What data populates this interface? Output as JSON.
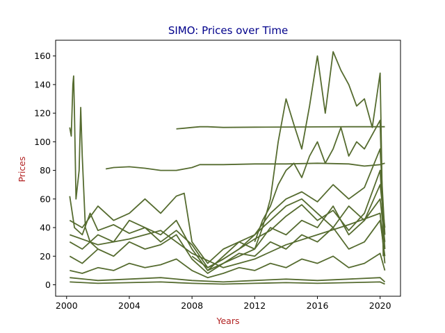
{
  "chart_data": {
    "type": "line",
    "title": "SIMO: Prices over Time",
    "xlabel": "Years",
    "ylabel": "Prices",
    "xlim": [
      1999.3,
      2021.3
    ],
    "ylim": [
      -8,
      171
    ],
    "xticks": [
      2000,
      2004,
      2008,
      2012,
      2016,
      2020
    ],
    "yticks": [
      0,
      20,
      40,
      60,
      80,
      100,
      120,
      140,
      160
    ],
    "grid": false,
    "legend": "none",
    "colors": {
      "line": "#556B2F",
      "title": "#00008B",
      "axis_label": "#B22222",
      "axis": "#000000"
    },
    "series": [
      {
        "x": [
          2007.0,
          2007.5,
          2008.0,
          2008.5,
          2009.0,
          2010.0,
          2012.0,
          2014.0,
          2016.0,
          2018.0,
          2020.0,
          2020.3
        ],
        "values": [
          109,
          109.5,
          110,
          110.5,
          110.5,
          110,
          110.2,
          110.3,
          110.4,
          110.5,
          110.5,
          110.5
        ]
      },
      {
        "x": [
          2002.5,
          2003.0,
          2004.0,
          2005.0,
          2006.0,
          2007.0,
          2008.0,
          2008.5,
          2010.0,
          2012.0,
          2014.0,
          2016.0,
          2018.0,
          2019.0,
          2020.0,
          2020.3
        ],
        "values": [
          81,
          82,
          82.5,
          81.5,
          80,
          80,
          82,
          84,
          84,
          84.5,
          84.5,
          85,
          84.5,
          83,
          84,
          85
        ]
      },
      {
        "x": [
          2000.2,
          2000.3,
          2000.4,
          2000.45,
          2000.5,
          2000.6,
          2000.8,
          2000.9,
          2001.0,
          2001.2,
          2001.5,
          2002.0
        ],
        "values": [
          110,
          104,
          140,
          146,
          120,
          60,
          80,
          124,
          90,
          40,
          30,
          25
        ]
      },
      {
        "x": [
          2009.0,
          2010.0,
          2011.0,
          2012.0,
          2012.5,
          2013.0,
          2013.5,
          2014.0,
          2014.5,
          2015.0,
          2015.5,
          2016.0,
          2016.5,
          2017.0,
          2017.5,
          2018.0,
          2018.5,
          2019.0,
          2019.5,
          2020.0,
          2020.2
        ],
        "values": [
          10,
          15,
          20,
          25,
          40,
          60,
          100,
          130,
          112,
          95,
          125,
          160,
          120,
          163,
          150,
          140,
          125,
          130,
          110,
          148,
          20
        ]
      },
      {
        "x": [
          2000.2,
          2001.0,
          2002.0,
          2003.0,
          2004.0,
          2005.0,
          2006.0,
          2007.0,
          2007.5,
          2008.0,
          2009.0,
          2010.0,
          2011.0,
          2012.0,
          2013.0,
          2014.0,
          2015.0,
          2016.0,
          2017.0,
          2018.0,
          2019.0,
          2020.0,
          2020.3
        ],
        "values": [
          45,
          40,
          55,
          45,
          50,
          60,
          50,
          62,
          64,
          30,
          15,
          25,
          30,
          35,
          45,
          55,
          60,
          50,
          40,
          55,
          45,
          70,
          40
        ]
      },
      {
        "x": [
          2000.2,
          2001.0,
          2002.0,
          2003.0,
          2004.0,
          2005.0,
          2006.0,
          2007.0,
          2008.0,
          2009.0,
          2010.0,
          2011.0,
          2012.0,
          2013.0,
          2014.0,
          2015.0,
          2016.0,
          2017.0,
          2018.0,
          2019.0,
          2020.0,
          2020.3
        ],
        "values": [
          30,
          25,
          35,
          30,
          45,
          40,
          35,
          45,
          25,
          10,
          20,
          30,
          25,
          40,
          35,
          45,
          40,
          55,
          35,
          45,
          60,
          30
        ]
      },
      {
        "x": [
          2000.2,
          2001.0,
          2002.0,
          2003.0,
          2004.0,
          2005.0,
          2006.0,
          2007.0,
          2008.0,
          2009.0,
          2010.0,
          2011.0,
          2012.0,
          2013.0,
          2014.0,
          2015.0,
          2016.0,
          2017.0,
          2018.0,
          2019.0,
          2020.0,
          2020.3
        ],
        "values": [
          20,
          15,
          25,
          20,
          30,
          25,
          28,
          35,
          18,
          8,
          15,
          22,
          20,
          30,
          25,
          35,
          30,
          40,
          25,
          30,
          45,
          20
        ]
      },
      {
        "x": [
          2000.2,
          2001.0,
          2002.0,
          2003.0,
          2004.0,
          2005.0,
          2006.0,
          2007.0,
          2008.0,
          2009.0,
          2010.0,
          2011.0,
          2012.0,
          2013.0,
          2014.0,
          2015.0,
          2016.0,
          2017.0,
          2018.0,
          2019.0,
          2020.0,
          2020.3
        ],
        "values": [
          10,
          8,
          12,
          10,
          15,
          12,
          14,
          18,
          10,
          5,
          8,
          12,
          10,
          15,
          12,
          18,
          15,
          20,
          12,
          15,
          22,
          10
        ]
      },
      {
        "x": [
          2000.2,
          2002.0,
          2004.0,
          2006.0,
          2008.0,
          2010.0,
          2012.0,
          2014.0,
          2016.0,
          2018.0,
          2020.0,
          2020.3
        ],
        "values": [
          5,
          3,
          4,
          5,
          3,
          2,
          3,
          4,
          3,
          4,
          5,
          2
        ]
      },
      {
        "x": [
          2000.2,
          2002.0,
          2004.0,
          2006.0,
          2008.0,
          2010.0,
          2012.0,
          2014.0,
          2016.0,
          2018.0,
          2020.0,
          2020.3
        ],
        "values": [
          2,
          1,
          1.5,
          2,
          1,
          0.5,
          1,
          1.5,
          1,
          1.5,
          2,
          0.5
        ]
      },
      {
        "x": [
          2000.2,
          2000.5,
          2001.0,
          2001.5,
          2002.0,
          2003.0,
          2004.0,
          2005.0,
          2006.0,
          2007.0,
          2008.0,
          2009.0,
          2010.0,
          2011.0,
          2012.0,
          2013.0,
          2014.0,
          2015.0,
          2016.0,
          2017.0,
          2018.0,
          2019.0,
          2020.0,
          2020.3
        ],
        "values": [
          62,
          40,
          35,
          50,
          38,
          42,
          36,
          40,
          30,
          38,
          28,
          12,
          18,
          25,
          32,
          38,
          48,
          56,
          45,
          52,
          38,
          50,
          80,
          25
        ]
      },
      {
        "x": [
          2012.0,
          2012.5,
          2013.0,
          2013.5,
          2014.0,
          2014.5,
          2015.0,
          2015.5,
          2016.0,
          2016.5,
          2017.0,
          2017.5,
          2018.0,
          2018.5,
          2019.0,
          2019.5,
          2020.0,
          2020.2
        ],
        "values": [
          30,
          45,
          55,
          70,
          80,
          85,
          75,
          90,
          100,
          85,
          95,
          110,
          90,
          100,
          95,
          105,
          115,
          30
        ]
      },
      {
        "x": [
          2008.0,
          2009.0,
          2010.0,
          2011.0,
          2012.0,
          2013.0,
          2014.0,
          2015.0,
          2016.0,
          2017.0,
          2018.0,
          2019.0,
          2020.0,
          2020.3
        ],
        "values": [
          20,
          12,
          18,
          25,
          35,
          50,
          60,
          65,
          58,
          70,
          60,
          68,
          95,
          35
        ]
      },
      {
        "x": [
          2000.2,
          2002.0,
          2004.0,
          2006.0,
          2008.0,
          2010.0,
          2012.0,
          2014.0,
          2016.0,
          2018.0,
          2020.0,
          2020.3
        ],
        "values": [
          35,
          28,
          32,
          38,
          22,
          12,
          18,
          28,
          35,
          42,
          50,
          15
        ]
      }
    ]
  }
}
